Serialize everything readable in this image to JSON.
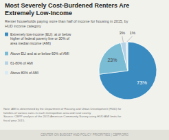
{
  "chart_data": {
    "type": "pie",
    "title": "Most Severely Cost-Burdened Renters Are\nExtremely Low-Income",
    "subtitle": "Renter households paying more than half of income for housing in 2015, by\nHUD income category",
    "categories": [
      "Extremely low-income (ELI): at or below\nhigher of federal poverty line or 30% of\narea median income (AMI)",
      "Above ELI and at or below 60% of AMI",
      "61-80% of AMI",
      "Above 80% of AMI"
    ],
    "values": [
      73,
      23,
      3,
      1
    ],
    "value_labels": [
      "73%",
      "23%",
      "3%",
      "1%"
    ],
    "data_labels": true,
    "colors": [
      "#3a8bbf",
      "#7bbcd5",
      "#b5d3e5",
      "#d8eaf3"
    ],
    "annotations": [
      "Note: AMI is determined by the Department of Housing and Urban Development (HUD) for",
      "families of various sizes in each metropolitan area and rural county.",
      "Source: CBPP analysis of the 2015 American Community Survey using HUD AMI limits for",
      "fiscal year 2015."
    ],
    "footer": "CENTER ON BUDGET AND POLICY PRIORITIES | CBPP.ORG"
  }
}
